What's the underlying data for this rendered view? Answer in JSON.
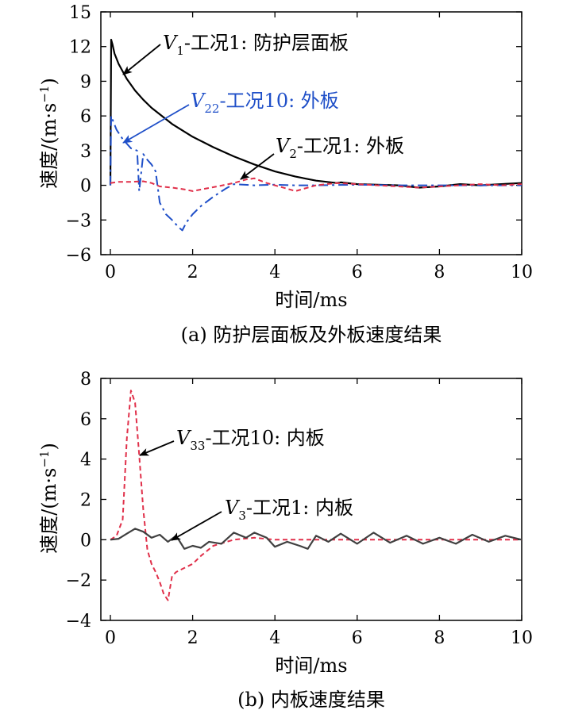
{
  "charts": [
    {
      "id": "a",
      "caption": "(a) 防护层面板及外板速度结果",
      "xlabel": "时间/ms",
      "ylabel_text": "速度/(m·s",
      "ylabel_exp": "−1",
      "ylabel_close": ")",
      "xticks": [
        "0",
        "2",
        "4",
        "6",
        "8",
        "10"
      ],
      "yticks": [
        "−6",
        "−3",
        "0",
        "3",
        "6",
        "9",
        "12",
        "15"
      ],
      "annotations": [
        {
          "v": "V",
          "sub": "1",
          "rest": "-工况1: 防护层面板",
          "color": "#000000"
        },
        {
          "v": "V",
          "sub": "22",
          "rest": "-工况10: 外板",
          "color": "#1f4fc8"
        },
        {
          "v": "V",
          "sub": "2",
          "rest": "-工况1: 外板",
          "color": "#000000"
        }
      ]
    },
    {
      "id": "b",
      "caption": "(b) 内板速度结果",
      "xlabel": "时间/ms",
      "ylabel_text": "速度/(m·s",
      "ylabel_exp": "−1",
      "ylabel_close": ")",
      "xticks": [
        "0",
        "2",
        "4",
        "6",
        "8",
        "10"
      ],
      "yticks": [
        "−4",
        "−2",
        "0",
        "2",
        "4",
        "6",
        "8"
      ],
      "annotations": [
        {
          "v": "V",
          "sub": "33",
          "rest": "-工况10: 内板",
          "color": "#000000"
        },
        {
          "v": "V",
          "sub": "3",
          "rest": "-工况1: 内板",
          "color": "#000000"
        }
      ]
    }
  ],
  "chart_data": [
    {
      "type": "line",
      "title": "(a) 防护层面板及外板速度结果",
      "xlabel": "时间/ms",
      "ylabel": "速度/(m·s−1)",
      "xlim": [
        0,
        10
      ],
      "ylim": [
        -6,
        15
      ],
      "grid": false,
      "series": [
        {
          "name": "V1-工况1: 防护层面板",
          "color": "#000000",
          "dash": "solid",
          "x": [
            0,
            0.02,
            0.05,
            0.1,
            0.2,
            0.4,
            0.6,
            0.8,
            1.0,
            1.5,
            2.0,
            2.5,
            3.0,
            3.5,
            4.0,
            4.5,
            5.0,
            5.5,
            5.6,
            6.0,
            6.5,
            7.0,
            7.5,
            8.0,
            8.5,
            9.0,
            9.5,
            10.0
          ],
          "y": [
            0,
            12.6,
            12.2,
            11.4,
            10.5,
            9.2,
            8.2,
            7.4,
            6.7,
            5.3,
            4.2,
            3.3,
            2.5,
            1.8,
            1.2,
            0.75,
            0.4,
            0.2,
            0.25,
            0.1,
            0.05,
            0,
            -0.2,
            -0.1,
            0.1,
            0,
            0.1,
            0.2
          ]
        },
        {
          "name": "V22-工况10: 外板",
          "color": "#1f4fc8",
          "dash": "dashdot",
          "x": [
            0,
            0.02,
            0.05,
            0.15,
            0.3,
            0.5,
            0.65,
            0.7,
            0.8,
            0.9,
            1.0,
            1.1,
            1.2,
            1.35,
            1.5,
            1.65,
            1.75,
            1.85,
            2.0,
            2.2,
            2.5,
            2.8,
            3.0,
            3.5,
            4.0,
            4.5,
            5.0,
            6.0,
            7.0,
            8.0,
            9.0,
            10.0
          ],
          "y": [
            0,
            6.0,
            5.7,
            4.8,
            4.0,
            3.2,
            3.0,
            -0.5,
            2.7,
            2.2,
            1.8,
            1.2,
            -1.5,
            -2.5,
            -3.0,
            -3.6,
            -3.9,
            -3.2,
            -2.5,
            -1.8,
            -1.0,
            -0.3,
            0.1,
            0.0,
            0.05,
            0.0,
            0.0,
            0.05,
            0.0,
            0.0,
            0.0,
            0.0
          ]
        },
        {
          "name": "V2-工况1: 外板",
          "color": "#e0304a",
          "dash": "dashed",
          "x": [
            0,
            0.2,
            0.5,
            0.8,
            1.0,
            1.2,
            1.5,
            1.8,
            2.0,
            2.3,
            2.6,
            3.0,
            3.3,
            3.5,
            3.8,
            4.0,
            4.3,
            4.5,
            4.8,
            5.0,
            5.5,
            6.0,
            6.5,
            7.0,
            7.5,
            8.0,
            8.5,
            9.0,
            9.5,
            10.0
          ],
          "y": [
            0.2,
            0.3,
            0.3,
            0.35,
            0.2,
            -0.1,
            -0.2,
            -0.35,
            -0.5,
            -0.3,
            -0.1,
            0.2,
            0.5,
            0.6,
            0.2,
            0.0,
            -0.3,
            -0.5,
            -0.2,
            0.0,
            0.2,
            0.1,
            0.0,
            -0.1,
            -0.2,
            -0.1,
            0.0,
            0.1,
            0.0,
            0.1
          ]
        }
      ]
    },
    {
      "type": "line",
      "title": "(b) 内板速度结果",
      "xlabel": "时间/ms",
      "ylabel": "速度/(m·s−1)",
      "xlim": [
        0,
        10
      ],
      "ylim": [
        -4,
        8
      ],
      "grid": false,
      "series": [
        {
          "name": "V33-工况10: 内板",
          "color": "#e0304a",
          "dash": "dashed",
          "x": [
            0,
            0.15,
            0.3,
            0.4,
            0.5,
            0.6,
            0.7,
            0.8,
            0.9,
            1.0,
            1.1,
            1.2,
            1.3,
            1.4,
            1.5,
            1.6,
            1.8,
            2.0,
            2.2,
            2.5,
            3.0,
            3.5,
            4.0,
            5.0,
            6.0,
            7.0,
            8.0,
            9.0,
            10.0
          ],
          "y": [
            0,
            0.2,
            1.0,
            5.0,
            7.4,
            6.8,
            4.2,
            1.5,
            -0.5,
            -1.2,
            -1.6,
            -2.1,
            -2.7,
            -3.0,
            -1.8,
            -1.6,
            -1.4,
            -1.2,
            -0.8,
            -0.3,
            0.0,
            0.1,
            0.0,
            0.0,
            0.0,
            0.0,
            0.0,
            0.0,
            0.0
          ]
        },
        {
          "name": "V3-工况1: 内板",
          "color": "#404040",
          "dash": "solid",
          "x": [
            0,
            0.2,
            0.4,
            0.6,
            0.8,
            1.0,
            1.2,
            1.4,
            1.6,
            1.8,
            2.0,
            2.2,
            2.4,
            2.7,
            3.0,
            3.3,
            3.5,
            3.8,
            4.0,
            4.3,
            4.6,
            4.8,
            5.0,
            5.3,
            5.6,
            6.0,
            6.4,
            6.8,
            7.2,
            7.6,
            8.0,
            8.4,
            8.8,
            9.2,
            9.6,
            10.0
          ],
          "y": [
            0,
            0.05,
            0.3,
            0.55,
            0.4,
            0.1,
            0.25,
            -0.1,
            0.2,
            -0.45,
            -0.3,
            -0.4,
            -0.1,
            -0.2,
            0.35,
            0.1,
            0.35,
            0.1,
            -0.35,
            -0.1,
            -0.3,
            -0.45,
            0.2,
            -0.1,
            0.3,
            -0.2,
            0.35,
            -0.15,
            0.2,
            -0.2,
            0.1,
            -0.2,
            0.25,
            -0.1,
            0.2,
            0.0
          ]
        }
      ]
    }
  ]
}
